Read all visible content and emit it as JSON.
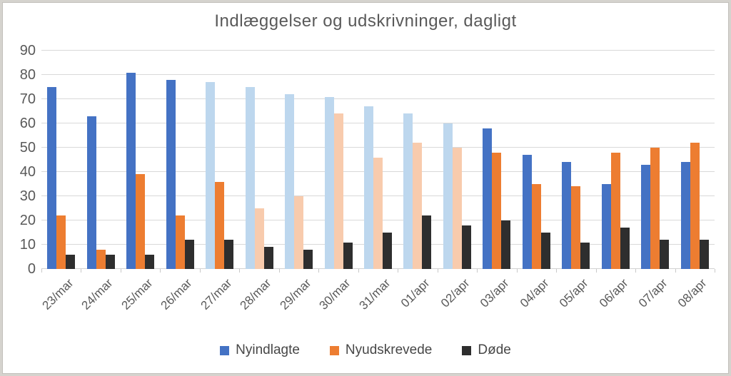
{
  "window": {
    "background": "#d5d3ce",
    "chart_background": "#ffffff",
    "frame_border_color": "#c2c0bc"
  },
  "chart_data": {
    "type": "bar",
    "title": "Indlæggelser og udskrivninger, dagligt",
    "xlabel": "",
    "ylabel": "",
    "ylim": [
      0,
      90
    ],
    "ytick_step": 10,
    "ytick_labels": [
      "0",
      "10",
      "20",
      "30",
      "40",
      "50",
      "60",
      "70",
      "80",
      "90"
    ],
    "grid": true,
    "legend_position": "bottom",
    "categories": [
      "23/mar",
      "24/mar",
      "25/mar",
      "26/mar",
      "27/mar",
      "28/mar",
      "29/mar",
      "30/mar",
      "31/mar",
      "01/apr",
      "02/apr",
      "03/apr",
      "04/apr",
      "05/apr",
      "06/apr",
      "07/apr",
      "08/apr"
    ],
    "series": [
      {
        "name": "Nyindlagte",
        "color": "#4472C4",
        "light_color": "#BDD7EE",
        "light_indices": [
          4,
          5,
          6,
          7,
          8,
          9,
          10
        ],
        "values": [
          75,
          63,
          81,
          78,
          77,
          75,
          72,
          71,
          67,
          64,
          60,
          58,
          47,
          44,
          35,
          43,
          44
        ]
      },
      {
        "name": "Nyudskrevede",
        "color": "#ED7D31",
        "light_color": "#F8CBAD",
        "light_indices": [
          5,
          6,
          7,
          8,
          9,
          10
        ],
        "values": [
          22,
          8,
          39,
          22,
          36,
          25,
          30,
          64,
          46,
          52,
          50,
          48,
          35,
          34,
          48,
          50,
          52
        ]
      },
      {
        "name": "Døde",
        "color": "#2E2E2E",
        "light_color": "#2E2E2E",
        "light_indices": [],
        "values": [
          6,
          6,
          6,
          12,
          12,
          9,
          8,
          11,
          15,
          22,
          18,
          20,
          15,
          11,
          17,
          12,
          12
        ]
      }
    ],
    "styles": {
      "gridline_color": "#d9d9d9",
      "axis_line_color": "#d2d2d2",
      "tick_color": "#c9c9c9",
      "axis_text_color": "#595959",
      "title_color": "#595959",
      "legend_text_color": "#474747"
    }
  }
}
